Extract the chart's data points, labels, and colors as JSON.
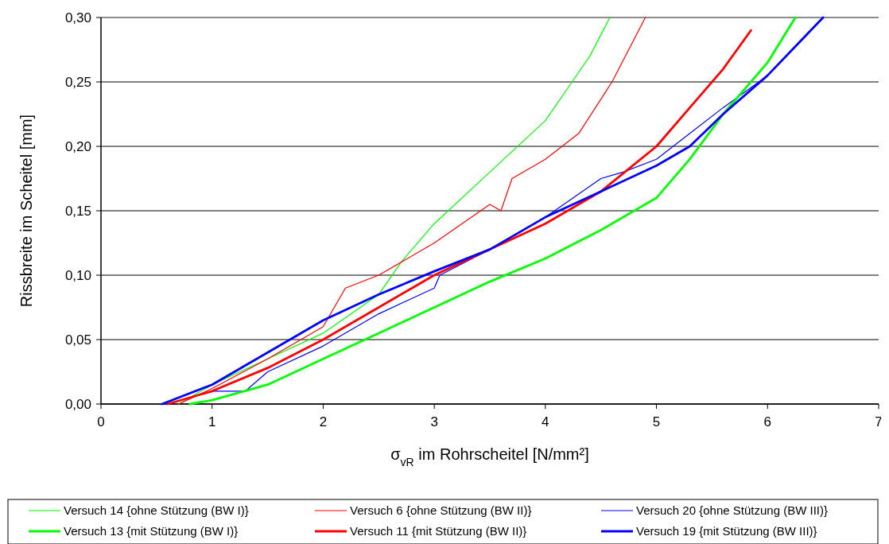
{
  "chart_data": {
    "type": "line",
    "xlabel": "σ$_{vR}$ im Rohrscheitel [N/mm²]",
    "ylabel": "Rissbreite im Scheitel [mm]",
    "xlim": [
      0,
      7
    ],
    "xticks": [
      0,
      1,
      2,
      3,
      4,
      5,
      6,
      7
    ],
    "ylim": [
      0,
      0.3
    ],
    "yticks": [
      {
        "value": 0,
        "label": "0,00"
      },
      {
        "value": 0.05,
        "label": "0,05"
      },
      {
        "value": 0.1,
        "label": "0,10"
      },
      {
        "value": 0.15,
        "label": "0,15"
      },
      {
        "value": 0.2,
        "label": "0,20"
      },
      {
        "value": 0.25,
        "label": "0,25"
      },
      {
        "value": 0.3,
        "label": "0,30"
      }
    ],
    "grid": "y",
    "legend": "bottom",
    "line_style": "solid",
    "series": [
      {
        "name": "Versuch 14 {ohne Stützung (BW I)}",
        "color": "#00ff00",
        "x": [
          0.7,
          1,
          1.5,
          2,
          2.5,
          2.7,
          3,
          3.5,
          4,
          4.24,
          4.4,
          4.58
        ],
        "values": [
          0,
          0.015,
          0.035,
          0.055,
          0.085,
          0.11,
          0.14,
          0.18,
          0.22,
          0.25,
          0.27,
          0.3
        ]
      },
      {
        "name": "Versuch 6 {ohne Stützung (BW II)}",
        "color": "#ff0000",
        "x": [
          0.7,
          1,
          1.5,
          2,
          2.2,
          2.5,
          3,
          3.5,
          3.6,
          3.7,
          4,
          4.3,
          4.6,
          4.75,
          4.9
        ],
        "values": [
          0,
          0.012,
          0.035,
          0.06,
          0.09,
          0.1,
          0.125,
          0.155,
          0.15,
          0.175,
          0.19,
          0.21,
          0.25,
          0.275,
          0.3
        ]
      },
      {
        "name": "Versuch 20 {ohne Stützung (BW III)}",
        "color": "#0000ff",
        "x": [
          0.6,
          1,
          1.3,
          1.5,
          2,
          2.5,
          3,
          3.05,
          3.5,
          4,
          4.5,
          4.7,
          5,
          5.3,
          5.6,
          6,
          6.5
        ],
        "values": [
          0,
          0.01,
          0.01,
          0.025,
          0.045,
          0.07,
          0.09,
          0.1,
          0.12,
          0.145,
          0.175,
          0.18,
          0.19,
          0.21,
          0.23,
          0.255,
          0.3
        ]
      },
      {
        "name": "Versuch 13 {mit Stützung (BW I)}",
        "color": "#00ff00",
        "x": [
          0.8,
          1,
          1.5,
          2,
          2.5,
          3,
          3.5,
          4,
          4.5,
          5,
          5.3,
          5.6,
          6,
          6.25
        ],
        "values": [
          0,
          0.003,
          0.015,
          0.035,
          0.055,
          0.075,
          0.095,
          0.113,
          0.135,
          0.16,
          0.19,
          0.225,
          0.265,
          0.3
        ]
      },
      {
        "name": "Versuch 11 {mit Stützung (BW II)}",
        "color": "#ff0000",
        "x": [
          0.6,
          1,
          1.5,
          2,
          2.5,
          3,
          3.5,
          4,
          4.5,
          5,
          5.3,
          5.6,
          5.85
        ],
        "values": [
          0,
          0.01,
          0.028,
          0.05,
          0.075,
          0.1,
          0.12,
          0.14,
          0.165,
          0.2,
          0.23,
          0.26,
          0.29
        ]
      },
      {
        "name": "Versuch 19 {mit Stützung (BW III)}",
        "color": "#0000ff",
        "x": [
          0.55,
          1,
          1.5,
          2,
          2.5,
          3,
          3.5,
          4,
          4.5,
          5,
          5.3,
          5.6,
          6,
          6.5
        ],
        "values": [
          0,
          0.015,
          0.04,
          0.065,
          0.085,
          0.103,
          0.12,
          0.145,
          0.165,
          0.185,
          0.2,
          0.225,
          0.255,
          0.3
        ]
      }
    ]
  }
}
